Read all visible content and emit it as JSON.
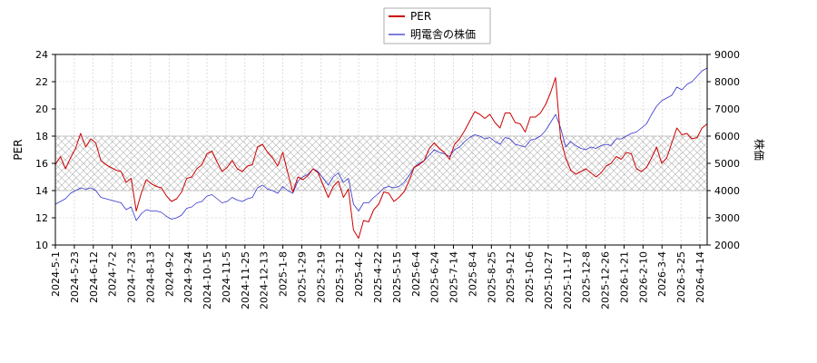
{
  "chart_data": {
    "type": "line",
    "title": "",
    "band": {
      "lower": 14,
      "upper": 18
    },
    "left_axis": {
      "label": "PER",
      "range": [
        10,
        24
      ],
      "ticks": [
        "10",
        "12",
        "14",
        "16",
        "18",
        "20",
        "22",
        "24"
      ]
    },
    "right_axis": {
      "label": "株価",
      "range": [
        2000,
        9000
      ],
      "ticks": [
        "2000",
        "3000",
        "4000",
        "5000",
        "6000",
        "7000",
        "8000",
        "9000"
      ]
    },
    "x_ticks": [
      "2024-5-1",
      "2024-5-23",
      "2024-6-12",
      "2024-7-2",
      "2024-7-23",
      "2024-8-13",
      "2024-9-2",
      "2024-9-24",
      "2024-10-15",
      "2024-11-5",
      "2024-11-25",
      "2024-12-13",
      "2025-1-8",
      "2025-1-29",
      "2025-2-19",
      "2025-3-12",
      "2025-4-2",
      "2025-4-22",
      "2025-5-15",
      "2025-6-4",
      "2025-6-24",
      "2025-7-14",
      "2025-8-4",
      "2025-8-25",
      "2025-9-12",
      "2025-10-6",
      "2025-10-27",
      "2025-11-17",
      "2025-12-8",
      "2025-12-26",
      "2026-1-21",
      "2026-2-10",
      "2026-3-4",
      "2026-3-25",
      "2026-4-14"
    ],
    "legend_position": "top-center",
    "series": [
      {
        "name": "PER",
        "color": "#cc0000",
        "axis": "left",
        "values": [
          15.9,
          16.5,
          15.6,
          16.4,
          17.1,
          18.2,
          17.2,
          17.8,
          17.5,
          16.2,
          15.9,
          15.7,
          15.5,
          15.4,
          14.6,
          14.9,
          12.5,
          13.8,
          14.8,
          14.5,
          14.3,
          14.2,
          13.6,
          13.2,
          13.4,
          13.9,
          14.9,
          15.0,
          15.6,
          15.9,
          16.7,
          16.9,
          16.1,
          15.4,
          15.7,
          16.2,
          15.6,
          15.4,
          15.8,
          15.9,
          17.2,
          17.4,
          16.8,
          16.4,
          15.8,
          16.8,
          15.3,
          13.9,
          15.0,
          14.8,
          15.1,
          15.6,
          15.3,
          14.4,
          13.5,
          14.3,
          14.7,
          13.5,
          14.1,
          11.1,
          10.5,
          11.8,
          11.7,
          12.6,
          13.0,
          13.9,
          13.8,
          13.2,
          13.5,
          13.9,
          14.7,
          15.7,
          15.9,
          16.2,
          17.1,
          17.5,
          17.1,
          16.8,
          16.3,
          17.4,
          17.8,
          18.4,
          19.1,
          19.8,
          19.6,
          19.3,
          19.6,
          19.0,
          18.6,
          19.7,
          19.7,
          19.0,
          18.9,
          18.3,
          19.4,
          19.4,
          19.7,
          20.3,
          21.2,
          22.3,
          17.8,
          16.4,
          15.5,
          15.2,
          15.4,
          15.6,
          15.3,
          15.0,
          15.3,
          15.8,
          16.0,
          16.5,
          16.3,
          16.8,
          16.7,
          15.6,
          15.4,
          15.7,
          16.4,
          17.2,
          16.0,
          16.4,
          17.5,
          18.6,
          18.1,
          18.2,
          17.8,
          17.9,
          18.6,
          18.9
        ]
      },
      {
        "name": "明電舎の株価",
        "color": "#3333cc",
        "axis": "right",
        "values": [
          3500,
          3600,
          3700,
          3900,
          4000,
          4100,
          4050,
          4100,
          4000,
          3750,
          3700,
          3650,
          3600,
          3550,
          3300,
          3400,
          2900,
          3150,
          3300,
          3250,
          3250,
          3200,
          3050,
          2950,
          3000,
          3100,
          3350,
          3400,
          3550,
          3600,
          3800,
          3850,
          3700,
          3550,
          3600,
          3750,
          3650,
          3600,
          3700,
          3750,
          4100,
          4200,
          4050,
          4000,
          3900,
          4150,
          4000,
          3900,
          4350,
          4500,
          4600,
          4800,
          4700,
          4450,
          4200,
          4500,
          4650,
          4300,
          4450,
          3500,
          3250,
          3550,
          3550,
          3750,
          3900,
          4100,
          4150,
          4100,
          4150,
          4300,
          4550,
          4850,
          5000,
          5100,
          5300,
          5500,
          5400,
          5350,
          5250,
          5500,
          5600,
          5800,
          5950,
          6050,
          6000,
          5900,
          5950,
          5800,
          5700,
          5950,
          5900,
          5700,
          5650,
          5600,
          5850,
          5900,
          6000,
          6200,
          6500,
          6800,
          6300,
          5600,
          5800,
          5650,
          5550,
          5500,
          5600,
          5550,
          5650,
          5700,
          5650,
          5900,
          5900,
          6000,
          6100,
          6150,
          6300,
          6450,
          6800,
          7100,
          7300,
          7400,
          7500,
          7800,
          7700,
          7900,
          8000,
          8200,
          8400,
          8500
        ]
      }
    ]
  }
}
